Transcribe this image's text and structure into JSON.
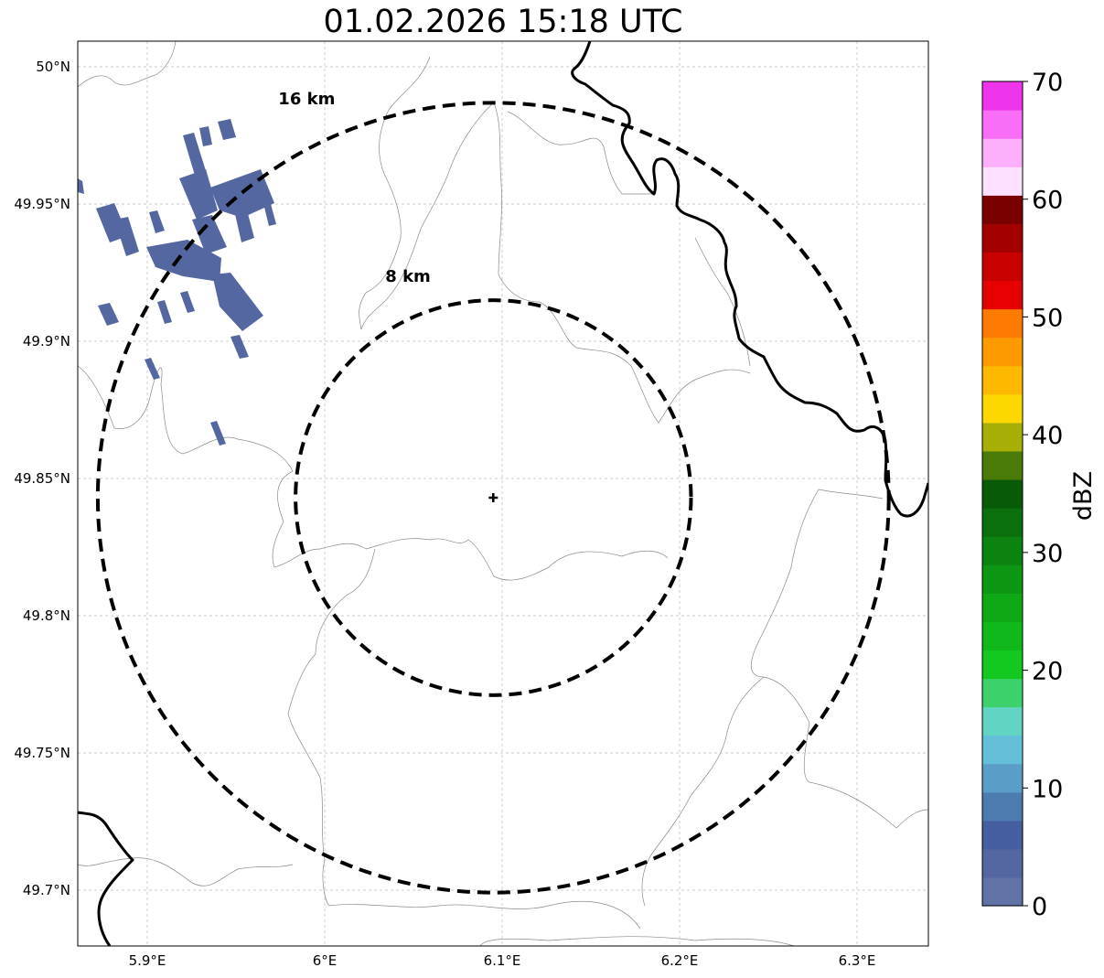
{
  "title": "01.02.2026 15:18 UTC",
  "map": {
    "lon_range": [
      5.86,
      6.34
    ],
    "lat_range": [
      49.68,
      50.01
    ],
    "lon_ticks": [
      5.9,
      6.0,
      6.1,
      6.2,
      6.3
    ],
    "lon_tick_labels": [
      "5.9°E",
      "6°E",
      "6.1°E",
      "6.2°E",
      "6.3°E"
    ],
    "lat_ticks": [
      50.0,
      49.95,
      49.9,
      49.85,
      49.8,
      49.75,
      49.7
    ],
    "lat_tick_labels": [
      "50°N",
      "49.95°N",
      "49.9°N",
      "49.85°N",
      "49.8°N",
      "49.75°N",
      "49.7°N"
    ],
    "gridlines": true,
    "radar_site": {
      "lon": 6.095,
      "lat": 49.843
    },
    "range_rings": [
      {
        "label": "16 km",
        "radius_km": 16
      },
      {
        "label": "8 km",
        "radius_km": 8
      }
    ]
  },
  "colorbar": {
    "label": "dBZ",
    "tick_labels": [
      "0",
      "10",
      "20",
      "30",
      "40",
      "50",
      "60",
      "70"
    ],
    "colors": [
      "#6072a6",
      "#5467a0",
      "#455e9f",
      "#4c7bb0",
      "#5a9ec7",
      "#66bfd9",
      "#62d4c4",
      "#3dd16c",
      "#13c91f",
      "#10b81b",
      "#0fa815",
      "#0d9613",
      "#0c8210",
      "#0a6f0c",
      "#075a08",
      "#4a7a08",
      "#a7ae06",
      "#fdd800",
      "#fdb800",
      "#fd9a00",
      "#fd7b00",
      "#e60000",
      "#c80000",
      "#a30000",
      "#7a0000",
      "#fde0ff",
      "#fcaffa",
      "#f96ef6",
      "#ee35ec"
    ]
  },
  "echoes_dbz": [
    3,
    3,
    3,
    4,
    3,
    3,
    3,
    3,
    3,
    3,
    3,
    3,
    4,
    3,
    3,
    3,
    3,
    3,
    3
  ]
}
